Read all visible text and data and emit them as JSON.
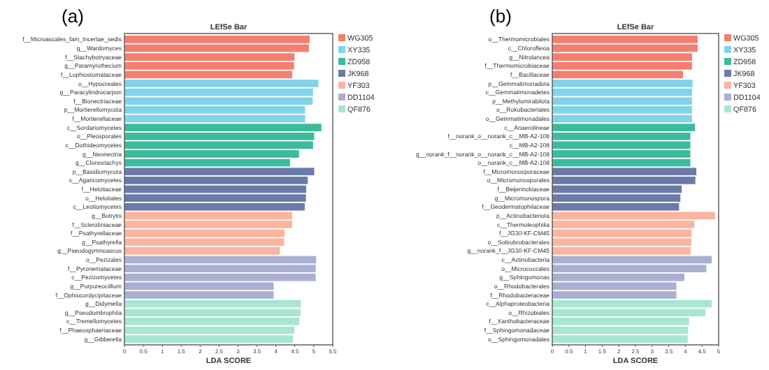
{
  "chart_data": [
    {
      "type": "bar",
      "orientation": "horizontal",
      "title": "LEfSe Bar",
      "xlabel": "LDA SCORE",
      "annotations": [
        "(a)"
      ],
      "legend": "right",
      "grid": false,
      "categories": [
        "f__Microascales_fam_Incertae_sedis",
        "g__Wardomyces",
        "f__Stachybotryaceae",
        "g__Paramyrothecium",
        "f__Lophiostomataceae",
        "o__Hypocreales",
        "g__Paracylindrocarpon",
        "f__Bionectriaceae",
        "p__Mortierellomycota",
        "f__Mortierellaceae",
        "c__Sordariomycetes",
        "o__Pleosporales",
        "c__Dothideomycetes",
        "g__Neonectria",
        "g__Clonostachys",
        "p__Basidiomycota",
        "c__Agaricomycetes",
        "f__Helotiaceae",
        "o__Helotiales",
        "c__Leotiomycetes",
        "g__Botrytis",
        "f__Sclerotiniaceae",
        "f__Psathyrellaceae",
        "g__Psathyrella",
        "g__Pseudogymnoascus",
        "o__Pezizales",
        "f__Pyronemataceae",
        "c__Pezizomycetes",
        "g__Purpureocillium",
        "f__Ophiocordycipitaceae",
        "g__Didymella",
        "g__Pseudombrophila",
        "c__Tremellomycetes",
        "f__Phaeosphaeriaceae",
        "g__Gibberella"
      ],
      "xlim": [
        0,
        5.5
      ],
      "xticks": [
        0,
        0.5,
        1,
        1.5,
        2,
        2.5,
        3,
        3.5,
        4,
        4.5,
        5,
        5.5
      ],
      "series": [
        {
          "name": "WG305",
          "color": "#f47f70",
          "values": [
            4.89,
            4.87,
            4.49,
            4.48,
            4.43,
            null,
            null,
            null,
            null,
            null,
            null,
            null,
            null,
            null,
            null,
            null,
            null,
            null,
            null,
            null,
            null,
            null,
            null,
            null,
            null,
            null,
            null,
            null,
            null,
            null,
            null,
            null,
            null,
            null,
            null
          ]
        },
        {
          "name": "XY335",
          "color": "#82d3e8",
          "values": [
            null,
            null,
            null,
            null,
            null,
            5.12,
            4.98,
            4.97,
            4.77,
            4.77,
            null,
            null,
            null,
            null,
            null,
            null,
            null,
            null,
            null,
            null,
            null,
            null,
            null,
            null,
            null,
            null,
            null,
            null,
            null,
            null,
            null,
            null,
            null,
            null,
            null
          ]
        },
        {
          "name": "ZD958",
          "color": "#3dbb9d",
          "values": [
            null,
            null,
            null,
            null,
            null,
            null,
            null,
            null,
            null,
            null,
            5.2,
            5.01,
            4.98,
            4.61,
            4.37,
            null,
            null,
            null,
            null,
            null,
            null,
            null,
            null,
            null,
            null,
            null,
            null,
            null,
            null,
            null,
            null,
            null,
            null,
            null,
            null
          ]
        },
        {
          "name": "JK968",
          "color": "#6b7aab",
          "values": [
            null,
            null,
            null,
            null,
            null,
            null,
            null,
            null,
            null,
            null,
            null,
            null,
            null,
            null,
            null,
            5.01,
            4.84,
            4.8,
            4.79,
            4.76,
            null,
            null,
            null,
            null,
            null,
            null,
            null,
            null,
            null,
            null,
            null,
            null,
            null,
            null,
            null
          ]
        },
        {
          "name": "YF303",
          "color": "#fcb49f",
          "values": [
            null,
            null,
            null,
            null,
            null,
            null,
            null,
            null,
            null,
            null,
            null,
            null,
            null,
            null,
            null,
            null,
            null,
            null,
            null,
            null,
            4.43,
            4.43,
            4.23,
            4.22,
            4.1,
            null,
            null,
            null,
            null,
            null,
            null,
            null,
            null,
            null,
            null
          ]
        },
        {
          "name": "DD1104",
          "color": "#aab0d2",
          "values": [
            null,
            null,
            null,
            null,
            null,
            null,
            null,
            null,
            null,
            null,
            null,
            null,
            null,
            null,
            null,
            null,
            null,
            null,
            null,
            null,
            null,
            null,
            null,
            null,
            null,
            5.06,
            5.05,
            5.05,
            3.94,
            3.94,
            null,
            null,
            null,
            null,
            null
          ]
        },
        {
          "name": "QF876",
          "color": "#a9e6d1",
          "values": [
            null,
            null,
            null,
            null,
            null,
            null,
            null,
            null,
            null,
            null,
            null,
            null,
            null,
            null,
            null,
            null,
            null,
            null,
            null,
            null,
            null,
            null,
            null,
            null,
            null,
            null,
            null,
            null,
            null,
            null,
            4.66,
            4.65,
            4.62,
            4.49,
            4.45
          ]
        }
      ]
    },
    {
      "type": "bar",
      "orientation": "horizontal",
      "title": "LEfSe Bar",
      "xlabel": "LDA SCORE",
      "annotations": [
        "(b)"
      ],
      "legend": "right",
      "grid": false,
      "categories": [
        "o__Thermomicrobiales",
        "c__Chloroflexia",
        "g__Nitrolancea",
        "f__Thermomicrobiaceae",
        "f__Bacillaceae",
        "p__Gemmatimonadota",
        "c__Gemmatimonadetes",
        "p__Methylomirabilota",
        "o__Rokubacteriales",
        "o__Gemmatimonadales",
        "c__Anaerolineae",
        "f__norank_o__norank_c__MB-A2-108",
        "c__MB-A2-108",
        "g__norank_f__norank_o__norank_c__MB-A2-108",
        "o__norank_c__MB-A2-108",
        "f__Micromonosporaceae",
        "o__Micromonosporales",
        "f__Beijerinckiaceae",
        "g__Micromonospora",
        "f__Geodermatophilaceae",
        "p__Actinobacteriota",
        "c__Thermoleophilia",
        "f__JG30-KF-CM45",
        "o__Solirubrobacterales",
        "g__norank_f__JG30-KF-CM45",
        "c__Actinobacteria",
        "o__Micrococcales",
        "g__Sphingomonas",
        "o__Rhodobacterales",
        "f__Rhodobacteraceae",
        "c__Alphaproteobacteria",
        "o__Rhizobiales",
        "f__Xanthobacteraceae",
        "f__Sphingomonadaceae",
        "o__Sphingomonadales"
      ],
      "xlim": [
        0,
        5
      ],
      "xticks": [
        0,
        0.5,
        1,
        1.5,
        2,
        2.5,
        3,
        3.5,
        4,
        4.5,
        5
      ],
      "series": [
        {
          "name": "WG305",
          "color": "#f47f70",
          "values": [
            4.37,
            4.37,
            4.2,
            4.2,
            3.93,
            null,
            null,
            null,
            null,
            null,
            null,
            null,
            null,
            null,
            null,
            null,
            null,
            null,
            null,
            null,
            null,
            null,
            null,
            null,
            null,
            null,
            null,
            null,
            null,
            null,
            null,
            null,
            null,
            null,
            null
          ]
        },
        {
          "name": "XY335",
          "color": "#82d3e8",
          "values": [
            null,
            null,
            null,
            null,
            null,
            4.22,
            4.2,
            4.2,
            4.2,
            4.2,
            null,
            null,
            null,
            null,
            null,
            null,
            null,
            null,
            null,
            null,
            null,
            null,
            null,
            null,
            null,
            null,
            null,
            null,
            null,
            null,
            null,
            null,
            null,
            null,
            null
          ]
        },
        {
          "name": "ZD958",
          "color": "#3dbb9d",
          "values": [
            null,
            null,
            null,
            null,
            null,
            null,
            null,
            null,
            null,
            null,
            4.29,
            4.15,
            4.15,
            4.15,
            4.15,
            null,
            null,
            null,
            null,
            null,
            null,
            null,
            null,
            null,
            null,
            null,
            null,
            null,
            null,
            null,
            null,
            null,
            null,
            null,
            null
          ]
        },
        {
          "name": "JK968",
          "color": "#6b7aab",
          "values": [
            null,
            null,
            null,
            null,
            null,
            null,
            null,
            null,
            null,
            null,
            null,
            null,
            null,
            null,
            null,
            4.33,
            4.3,
            3.89,
            3.85,
            3.81,
            null,
            null,
            null,
            null,
            null,
            null,
            null,
            null,
            null,
            null,
            null,
            null,
            null,
            null,
            null
          ]
        },
        {
          "name": "YF303",
          "color": "#fcb49f",
          "values": [
            null,
            null,
            null,
            null,
            null,
            null,
            null,
            null,
            null,
            null,
            null,
            null,
            null,
            null,
            null,
            null,
            null,
            null,
            null,
            null,
            4.89,
            4.27,
            4.19,
            4.18,
            4.16,
            null,
            null,
            null,
            null,
            null,
            null,
            null,
            null,
            null,
            null
          ]
        },
        {
          "name": "DD1104",
          "color": "#aab0d2",
          "values": [
            null,
            null,
            null,
            null,
            null,
            null,
            null,
            null,
            null,
            null,
            null,
            null,
            null,
            null,
            null,
            null,
            null,
            null,
            null,
            null,
            null,
            null,
            null,
            null,
            null,
            4.79,
            4.63,
            3.97,
            3.73,
            3.73,
            null,
            null,
            null,
            null,
            null
          ]
        },
        {
          "name": "QF876",
          "color": "#a9e6d1",
          "values": [
            null,
            null,
            null,
            null,
            null,
            null,
            null,
            null,
            null,
            null,
            null,
            null,
            null,
            null,
            null,
            null,
            null,
            null,
            null,
            null,
            null,
            null,
            null,
            null,
            null,
            null,
            null,
            null,
            null,
            null,
            4.79,
            4.6,
            4.11,
            4.08,
            4.07
          ]
        }
      ]
    }
  ]
}
